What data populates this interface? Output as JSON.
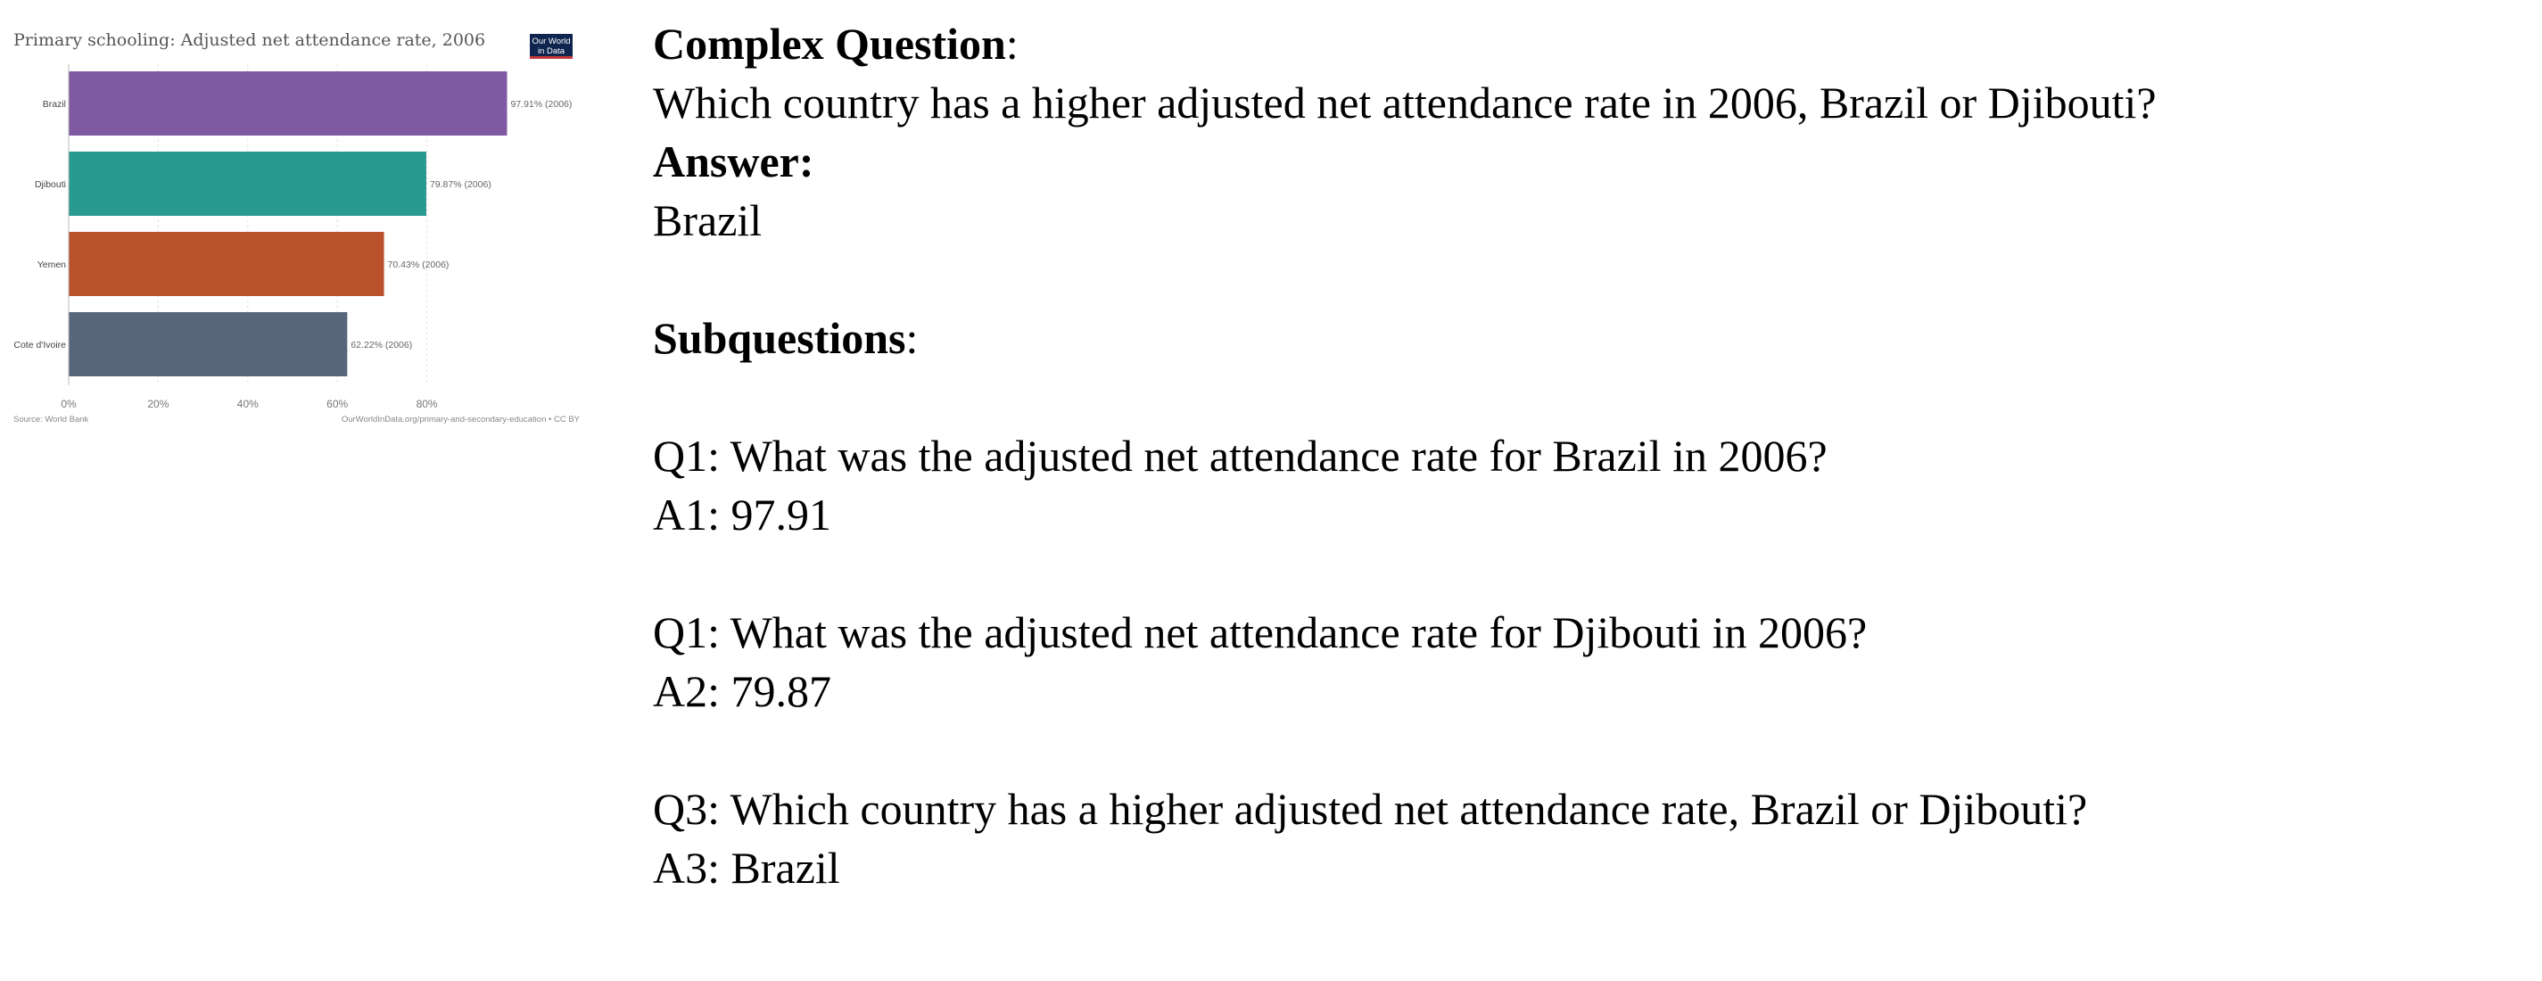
{
  "chart": {
    "title": "Primary schooling: Adjusted net attendance rate, 2006",
    "logo_line1": "Our World",
    "logo_line2": "in Data",
    "source": "Source: World Bank",
    "url": "OurWorldInData.org/primary-and-secondary-education • CC BY"
  },
  "chart_data": {
    "type": "bar",
    "orientation": "horizontal",
    "title": "Primary schooling: Adjusted net attendance rate, 2006",
    "categories": [
      "Brazil",
      "Djibouti",
      "Yemen",
      "Cote d'Ivoire"
    ],
    "values": [
      97.91,
      79.87,
      70.43,
      62.22
    ],
    "value_labels": [
      "97.91% (2006)",
      "79.87% (2006)",
      "70.43% (2006)",
      "62.22% (2006)"
    ],
    "colors": [
      "#7f5aa2",
      "#289a8f",
      "#b8512c",
      "#58667c"
    ],
    "xticks": [
      "0%",
      "20%",
      "40%",
      "60%",
      "80%"
    ],
    "xlim": [
      0,
      100
    ],
    "grid": true,
    "xlabel": "",
    "ylabel": ""
  },
  "qa": {
    "complex_heading": "Complex Question",
    "complex_colon": ":",
    "complex_question": "Which country has a higher adjusted net attendance rate in 2006, Brazil or Djibouti?",
    "answer_heading": "Answer:",
    "answer": "Brazil",
    "sub_heading": "Subquestions",
    "sub_colon": ":",
    "q1": "Q1: What was the adjusted net attendance rate for Brazil in 2006?",
    "a1": "A1: 97.91",
    "q2": "Q1: What was the adjusted net attendance rate for Djibouti in 2006?",
    "a2": "A2: 79.87",
    "q3": "Q3: Which country has a higher adjusted net attendance rate, Brazil or Djibouti?",
    "a3": "A3: Brazil"
  }
}
